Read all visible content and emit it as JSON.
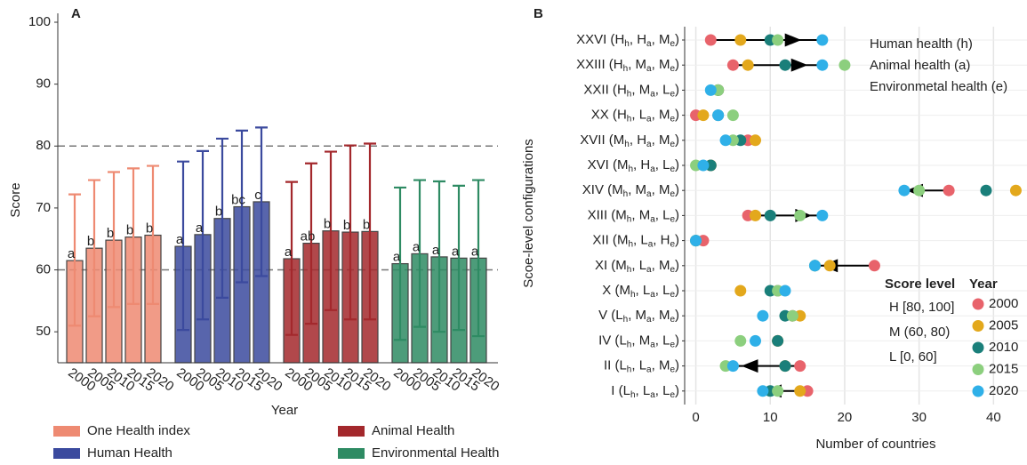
{
  "chart_data": [
    {
      "type": "bar",
      "panel_label": "A",
      "x_label": "Year",
      "y_label": "Score",
      "categories": [
        "2000",
        "2005",
        "2010",
        "2015",
        "2020"
      ],
      "ylim": [
        45,
        100
      ],
      "yticks": [
        50,
        60,
        70,
        80,
        90,
        100
      ],
      "hlines": [
        60,
        80
      ],
      "series": [
        {
          "name": "One Health index",
          "color": "#ee8a72",
          "values": [
            61.5,
            63.5,
            64.8,
            65.3,
            65.6
          ],
          "lower": [
            51,
            52.5,
            54,
            54.5,
            54.5
          ],
          "upper": [
            72.2,
            74.5,
            75.8,
            76.4,
            76.8
          ],
          "letters": [
            "a",
            "b",
            "b",
            "b",
            "b"
          ]
        },
        {
          "name": "Human Health",
          "color": "#3b4a9e",
          "values": [
            63.8,
            65.7,
            68.3,
            70.2,
            71
          ],
          "lower": [
            50.3,
            52,
            55.5,
            58,
            59
          ],
          "upper": [
            77.5,
            79.2,
            81.2,
            82.5,
            83
          ],
          "letters": [
            "a",
            "a",
            "b",
            "bc",
            "c"
          ]
        },
        {
          "name": "Animal Health",
          "color": "#a3282c",
          "values": [
            61.8,
            64.3,
            66.3,
            66.1,
            66.2
          ],
          "lower": [
            49.5,
            51.3,
            53.5,
            52,
            52
          ],
          "upper": [
            74.2,
            77.2,
            79.1,
            80.1,
            80.4
          ],
          "letters": [
            "a",
            "ab",
            "b",
            "b",
            "b"
          ]
        },
        {
          "name": "Environmental Health",
          "color": "#2e8b63",
          "values": [
            61,
            62.6,
            62.1,
            61.9,
            61.9
          ],
          "lower": [
            48.7,
            50.8,
            50,
            50.3,
            49.3
          ],
          "upper": [
            73.3,
            74.5,
            74.3,
            73.6,
            74.5
          ],
          "letters": [
            "a",
            "a",
            "a",
            "a",
            "a"
          ]
        }
      ]
    },
    {
      "type": "dot",
      "panel_label": "B",
      "x_label": "Number of countries",
      "y_label": "Scoe-level configurations",
      "xlim": [
        -1.5,
        44.5
      ],
      "xticks": [
        0,
        10,
        20,
        30,
        40
      ],
      "grid": true,
      "series": [
        {
          "name": "2000",
          "color": "#e8636b"
        },
        {
          "name": "2005",
          "color": "#e3a81c"
        },
        {
          "name": "2010",
          "color": "#1a7f7a"
        },
        {
          "name": "2015",
          "color": "#8ccf7e"
        },
        {
          "name": "2020",
          "color": "#2fb0e8"
        }
      ],
      "legend_title": "Year",
      "rows": [
        {
          "label": "XXVI (Hh, Ha, Me)",
          "values": [
            2,
            6,
            10,
            11,
            17
          ],
          "arrow": true
        },
        {
          "label": "XXIII (Hh, Ma, Me)",
          "values": [
            5,
            7,
            12,
            20,
            17
          ],
          "arrow": true
        },
        {
          "label": "XXII (Hh, Ma, Le)",
          "values": [
            3,
            3,
            3,
            3,
            2
          ],
          "arrow": false
        },
        {
          "label": "XX (Hh, La, Me)",
          "values": [
            0,
            1,
            3,
            5,
            3
          ],
          "arrow": false
        },
        {
          "label": "XVII (Mh, Ha, Me)",
          "values": [
            7,
            8,
            6,
            5,
            4
          ],
          "arrow": false
        },
        {
          "label": "XVI (Mh, Ha, Le)",
          "values": [
            2,
            2,
            2,
            0,
            1
          ],
          "arrow": false
        },
        {
          "label": "XIV (Mh, Ma, Me)",
          "values": [
            34,
            43,
            39,
            30,
            28
          ],
          "arrow": true
        },
        {
          "label": "XIII (Mh, Ma, Le)",
          "values": [
            7,
            8,
            10,
            14,
            17
          ],
          "arrow": true
        },
        {
          "label": "XII (Mh, La, He)",
          "values": [
            1,
            0,
            0,
            0,
            0
          ],
          "arrow": false
        },
        {
          "label": "XI (Mh, La, Me)",
          "values": [
            24,
            18,
            16,
            16,
            16
          ],
          "arrow": true
        },
        {
          "label": "X (Mh, La, Le)",
          "values": [
            11,
            6,
            10,
            11,
            12
          ],
          "arrow": false
        },
        {
          "label": "V (Lh, Ma, Me)",
          "values": [
            13,
            14,
            12,
            13,
            9
          ],
          "arrow": false
        },
        {
          "label": "IV (Lh, Ma, Le)",
          "values": [
            11,
            11,
            11,
            6,
            8
          ],
          "arrow": false
        },
        {
          "label": "II (Lh, La, Me)",
          "values": [
            14,
            12,
            12,
            4,
            5
          ],
          "arrow": true
        },
        {
          "label": "I (Lh, La, Le)",
          "values": [
            15,
            14,
            10,
            11,
            9
          ],
          "arrow": true
        }
      ],
      "health_notes": [
        "Human health (h)",
        "Animal health (a)",
        "Environmetal health (e)"
      ],
      "score_level": {
        "title": "Score level",
        "items": [
          "H [80, 100]",
          "M (60, 80)",
          "L [0, 60]"
        ]
      }
    }
  ]
}
